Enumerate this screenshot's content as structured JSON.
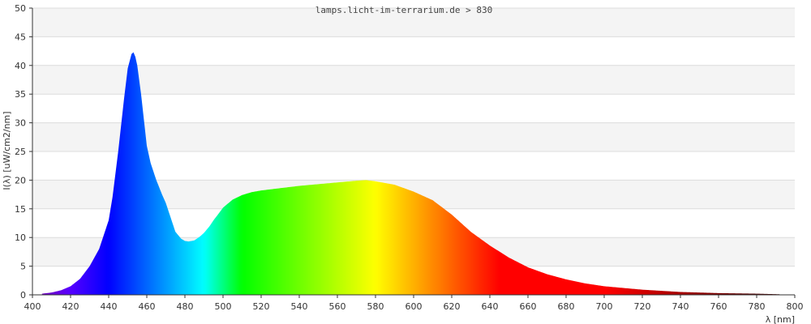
{
  "chart_data": {
    "type": "area",
    "title": "lamps.licht-im-terrarium.de > 830",
    "xlabel": "λ [nm]",
    "ylabel": "I(λ)  [uW/cm2/nm]",
    "xlim": [
      400,
      800
    ],
    "ylim": [
      0,
      50
    ],
    "xticks": [
      "400",
      "420",
      "440",
      "460",
      "480",
      "500",
      "520",
      "540",
      "560",
      "580",
      "600",
      "620",
      "640",
      "660",
      "680",
      "700",
      "720",
      "740",
      "760",
      "780",
      "800"
    ],
    "yticks": [
      "0",
      "5",
      "10",
      "15",
      "20",
      "25",
      "30",
      "35",
      "40",
      "45",
      "50"
    ],
    "grid": "horizontal bands",
    "series": [
      {
        "x": [
          405,
          410,
          415,
          420,
          425,
          430,
          435,
          440,
          442,
          445,
          448,
          450,
          452,
          453,
          454,
          455,
          457,
          460,
          462,
          465,
          468,
          470,
          472,
          475,
          478,
          480,
          482,
          485,
          488,
          490,
          493,
          495,
          498,
          500,
          505,
          510,
          515,
          520,
          530,
          540,
          550,
          560,
          570,
          575,
          580,
          590,
          600,
          610,
          620,
          630,
          640,
          650,
          660,
          670,
          680,
          690,
          700,
          720,
          740,
          760,
          780,
          792
        ],
        "y": [
          0.2,
          0.4,
          0.8,
          1.5,
          2.8,
          5.0,
          8.0,
          13.0,
          17.0,
          25.0,
          34.0,
          39.5,
          42.0,
          42.3,
          41.5,
          40.0,
          35.0,
          26.0,
          23.0,
          20.0,
          17.5,
          16.0,
          14.0,
          11.0,
          9.8,
          9.4,
          9.3,
          9.5,
          10.2,
          10.8,
          12.0,
          13.0,
          14.3,
          15.2,
          16.6,
          17.4,
          17.9,
          18.2,
          18.6,
          19.0,
          19.3,
          19.6,
          19.9,
          20.0,
          19.8,
          19.2,
          18.0,
          16.5,
          14.0,
          11.0,
          8.6,
          6.5,
          4.8,
          3.6,
          2.7,
          2.0,
          1.5,
          0.9,
          0.5,
          0.3,
          0.2,
          0.1
        ]
      }
    ],
    "colors": {
      "band_light": "#f4f4f4",
      "band_white": "#ffffff",
      "grid_line": "#dcdcdc",
      "axis_line": "#333333"
    }
  }
}
